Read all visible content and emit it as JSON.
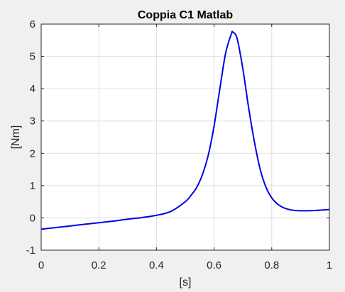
{
  "chart_data": {
    "type": "line",
    "title": "Coppia C1 Matlab",
    "xlabel": "[s]",
    "ylabel": "[Nm]",
    "xlim": [
      0,
      1
    ],
    "ylim": [
      -1,
      6
    ],
    "xticks": [
      0,
      0.2,
      0.4,
      0.6,
      0.8,
      1
    ],
    "xtick_labels": [
      "0",
      "0.2",
      "0.4",
      "0.6",
      "0.8",
      "1"
    ],
    "yticks": [
      -1,
      0,
      1,
      2,
      3,
      4,
      5,
      6
    ],
    "ytick_labels": [
      "-1",
      "0",
      "1",
      "2",
      "3",
      "4",
      "5",
      "6"
    ],
    "grid": true,
    "series": [
      {
        "color": "#0000e6",
        "x": [
          0,
          0.05,
          0.1,
          0.15,
          0.2,
          0.25,
          0.3,
          0.35,
          0.4,
          0.45,
          0.5,
          0.52,
          0.54,
          0.56,
          0.58,
          0.6,
          0.62,
          0.64,
          0.66,
          0.665,
          0.68,
          0.7,
          0.72,
          0.74,
          0.76,
          0.78,
          0.8,
          0.82,
          0.84,
          0.86,
          0.88,
          0.9,
          0.95,
          1
        ],
        "y": [
          -0.35,
          -0.3,
          -0.25,
          -0.2,
          -0.15,
          -0.1,
          -0.04,
          0.01,
          0.08,
          0.2,
          0.5,
          0.7,
          0.95,
          1.35,
          1.95,
          2.85,
          4.0,
          5.1,
          5.7,
          5.75,
          5.55,
          4.6,
          3.4,
          2.35,
          1.5,
          0.95,
          0.62,
          0.43,
          0.32,
          0.26,
          0.23,
          0.22,
          0.23,
          0.26
        ]
      }
    ]
  }
}
